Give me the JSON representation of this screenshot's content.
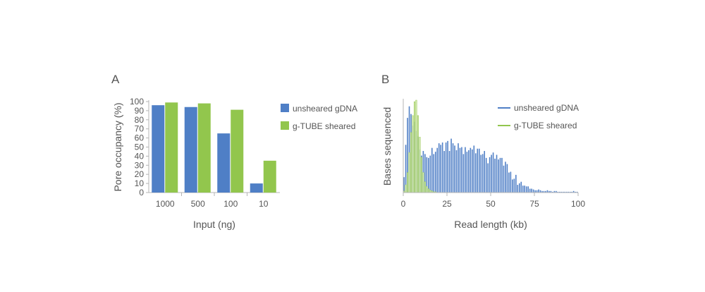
{
  "panels": {
    "a_letter": "A",
    "b_letter": "B"
  },
  "colors": {
    "unsheared": "#4f7fc6",
    "sheared": "#92c64d",
    "sheared_light": "#cfe6a4",
    "axis": "#b5b5b5",
    "text": "#555555"
  },
  "chart_data": [
    {
      "type": "bar",
      "title": "",
      "xlabel": "Input (ng)",
      "ylabel": "Pore occupancy (%)",
      "categories": [
        "1000",
        "500",
        "100",
        "10"
      ],
      "ylim": [
        0,
        100
      ],
      "yticks": [
        "0",
        "10",
        "20",
        "30",
        "40",
        "50",
        "60",
        "70",
        "80",
        "90",
        "100"
      ],
      "series": [
        {
          "name": "unsheared gDNA",
          "color": "#4f7fc6",
          "values": [
            96,
            94,
            65,
            10
          ]
        },
        {
          "name": "g-TUBE sheared",
          "color": "#92c64d",
          "values": [
            99,
            98,
            91,
            35
          ]
        }
      ],
      "legend": "right",
      "grid": false
    },
    {
      "type": "bar",
      "title": "",
      "xlabel": "Read length (kb)",
      "ylabel": "Bases sequenced",
      "xlim": [
        0,
        100
      ],
      "xticks": [
        "0",
        "25",
        "50",
        "75",
        "100"
      ],
      "yticks_shown": false,
      "series": [
        {
          "name": "unsheared gDNA",
          "color": "#4f7fc6",
          "x": [
            0,
            1,
            2,
            3,
            4,
            5,
            6,
            7,
            8,
            9,
            10,
            11,
            12,
            13,
            14,
            15,
            16,
            17,
            18,
            19,
            20,
            21,
            22,
            23,
            24,
            25,
            26,
            27,
            28,
            29,
            30,
            31,
            32,
            33,
            34,
            35,
            36,
            37,
            38,
            39,
            40,
            41,
            42,
            43,
            44,
            45,
            46,
            47,
            48,
            49,
            50,
            51,
            52,
            53,
            54,
            55,
            56,
            57,
            58,
            59,
            60,
            61,
            62,
            63,
            64,
            65,
            66,
            67,
            68,
            69,
            70,
            71,
            72,
            73,
            74,
            75,
            76,
            77,
            78,
            79,
            80,
            81,
            82,
            83,
            84,
            85,
            86,
            87,
            88,
            89,
            90,
            91,
            92,
            93,
            94,
            95,
            96,
            97,
            98,
            99
          ],
          "values": [
            20,
            62,
            97,
            112,
            102,
            87,
            92,
            80,
            73,
            56,
            48,
            54,
            50,
            46,
            45,
            48,
            58,
            50,
            53,
            58,
            64,
            62,
            65,
            54,
            65,
            67,
            54,
            70,
            64,
            61,
            55,
            64,
            58,
            59,
            50,
            59,
            53,
            55,
            58,
            56,
            61,
            51,
            57,
            57,
            49,
            50,
            54,
            45,
            38,
            46,
            49,
            52,
            44,
            49,
            43,
            45,
            45,
            35,
            40,
            37,
            26,
            27,
            17,
            18,
            23,
            10,
            12,
            14,
            9,
            9,
            8,
            8,
            5,
            5,
            4,
            3,
            3,
            4,
            3,
            2,
            2,
            2,
            3,
            2,
            2,
            1,
            2,
            2,
            1,
            1,
            1,
            1,
            1,
            1,
            1,
            1,
            1,
            2,
            1,
            1
          ]
        },
        {
          "name": "g-TUBE sheared",
          "color": "#92c64d",
          "x": [
            0,
            1,
            2,
            3,
            4,
            5,
            6,
            7,
            8,
            9,
            10,
            11,
            12,
            13,
            14,
            15,
            16,
            17,
            18,
            19,
            20
          ],
          "values": [
            2,
            10,
            26,
            52,
            78,
            100,
            118,
            120,
            100,
            72,
            46,
            26,
            14,
            8,
            5,
            3,
            2,
            1,
            1,
            0,
            0
          ]
        }
      ],
      "legend": "top-right",
      "grid": false
    }
  ]
}
